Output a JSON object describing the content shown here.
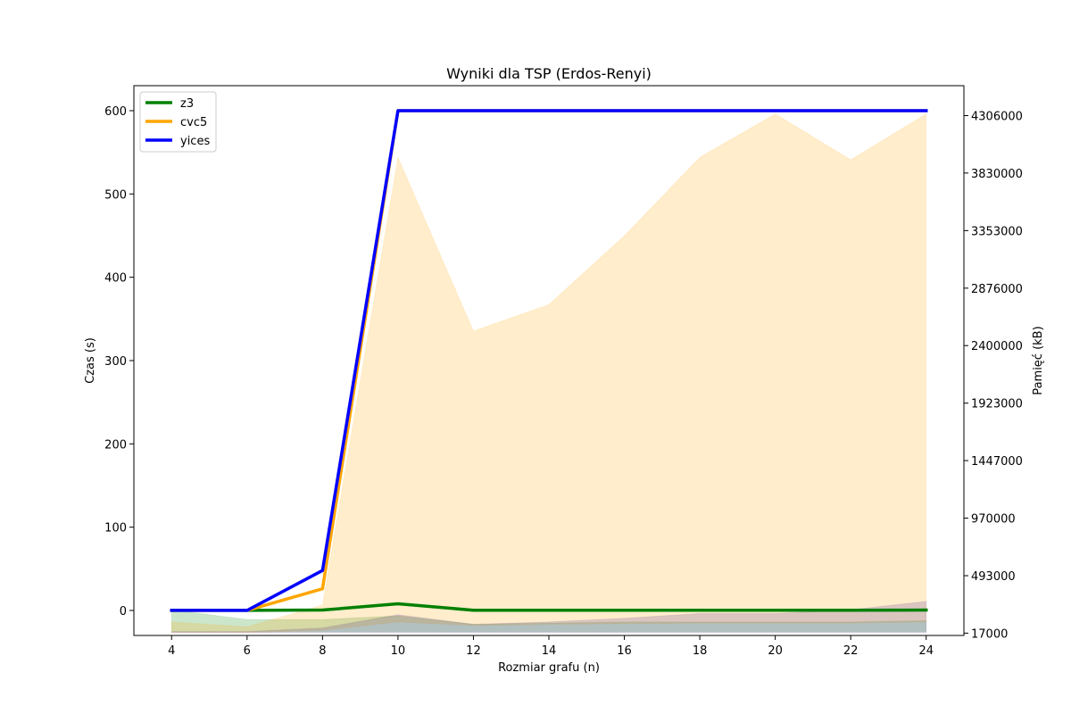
{
  "chart_data": {
    "type": "line",
    "title": "Wyniki dla TSP (Erdos-Renyi)",
    "xlabel": "Rozmiar grafu (n)",
    "ylabel": "Czas (s)",
    "y2label": "Pamięć (kB)",
    "x": [
      4,
      6,
      8,
      10,
      12,
      14,
      16,
      18,
      20,
      22,
      24
    ],
    "xlim": [
      3,
      25
    ],
    "ylim": [
      -30,
      630
    ],
    "y2lim": [
      -2329,
      4554000
    ],
    "xticks": [
      "4",
      "6",
      "8",
      "10",
      "12",
      "14",
      "16",
      "18",
      "20",
      "22",
      "24"
    ],
    "yticks": [
      "0",
      "100",
      "200",
      "300",
      "400",
      "500",
      "600"
    ],
    "y2ticks": [
      "17000",
      "493000",
      "970000",
      "1447000",
      "1923000",
      "2400000",
      "2876000",
      "3353000",
      "3830000",
      "4306000"
    ],
    "legend_position": "top-left",
    "grid": false,
    "series": [
      {
        "name": "z3",
        "color": "#008000",
        "values": [
          0.1,
          0.1,
          0.5,
          8,
          0.3,
          0.3,
          0.3,
          0.3,
          0.3,
          0.3,
          0.5
        ]
      },
      {
        "name": "cvc5",
        "color": "#ffa500",
        "values": [
          0.1,
          0.1,
          26,
          600,
          600,
          600,
          600,
          600,
          600,
          600,
          600
        ]
      },
      {
        "name": "yices",
        "color": "#0000ff",
        "values": [
          0.1,
          0.1,
          48,
          600,
          600,
          600,
          600,
          600,
          600,
          600,
          600
        ]
      }
    ],
    "memory_bands": [
      {
        "series": "z3",
        "color": "#008000",
        "lower": [
          30000,
          30000,
          30000,
          30000,
          30000,
          30000,
          30000,
          30000,
          30000,
          30000,
          30000
        ],
        "upper": [
          210000,
          130000,
          130000,
          160000,
          90000,
          100000,
          110000,
          110000,
          110000,
          110000,
          120000
        ]
      },
      {
        "series": "cvc5",
        "color": "#ffa500",
        "lower": [
          20000,
          20000,
          40000,
          110000,
          80000,
          90000,
          95000,
          100000,
          100000,
          100000,
          110000
        ],
        "upper": [
          110000,
          70000,
          250000,
          3960000,
          2520000,
          2740000,
          3310000,
          3960000,
          4320000,
          3940000,
          4320000
        ]
      },
      {
        "series": "yices",
        "color": "#4b2a8c",
        "lower": [
          20000,
          20000,
          20000,
          20000,
          20000,
          20000,
          20000,
          20000,
          20000,
          20000,
          20000
        ],
        "upper": [
          30000,
          30000,
          60000,
          170000,
          90000,
          110000,
          140000,
          180000,
          180000,
          210000,
          280000
        ]
      }
    ]
  }
}
